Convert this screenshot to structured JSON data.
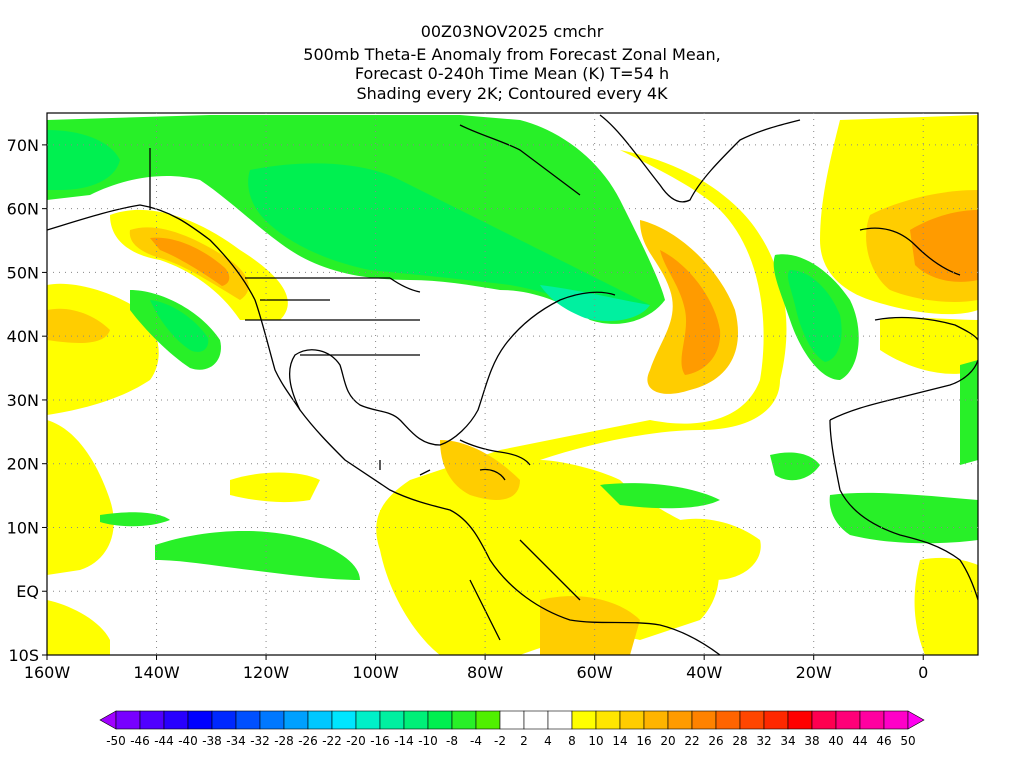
{
  "title": {
    "line1": "00Z03NOV2025 cmchr",
    "line2": "500mb Theta-E Anomaly from Forecast Zonal Mean,",
    "line3": "Forecast 0-240h Time Mean (K) T=54 h",
    "line4": "Shading every 2K; Contoured every 4K"
  },
  "map": {
    "lon_range": [
      -160,
      10
    ],
    "lat_range": [
      -10,
      75
    ],
    "lon_ticks": [
      "160W",
      "140W",
      "120W",
      "100W",
      "80W",
      "60W",
      "40W",
      "20W",
      "0"
    ],
    "lat_ticks": [
      "70N",
      "60N",
      "50N",
      "40N",
      "30N",
      "20N",
      "10N",
      "EQ",
      "10S"
    ],
    "gridlines": "dotted"
  },
  "colorbar": {
    "labels": [
      "-50",
      "-46",
      "-44",
      "-40",
      "-38",
      "-34",
      "-32",
      "-28",
      "-26",
      "-22",
      "-20",
      "-16",
      "-14",
      "-10",
      "-8",
      "-4",
      "-2",
      "2",
      "4",
      "8",
      "10",
      "14",
      "16",
      "20",
      "22",
      "26",
      "28",
      "32",
      "34",
      "38",
      "40",
      "44",
      "46",
      "50"
    ],
    "colors": [
      "#a000ff",
      "#7800ff",
      "#5000ff",
      "#2800ff",
      "#0000ff",
      "#0028ff",
      "#0050ff",
      "#0078ff",
      "#00a0ff",
      "#00c8ff",
      "#00e6ff",
      "#00f0c8",
      "#00f0a0",
      "#00f078",
      "#00f050",
      "#28f028",
      "#50f000",
      "#ffffff",
      "#ffffff",
      "#ffffff",
      "#ffff00",
      "#ffe600",
      "#ffcd00",
      "#ffb400",
      "#ff9b00",
      "#ff8200",
      "#ff6400",
      "#ff4600",
      "#ff2800",
      "#ff0000",
      "#ff0050",
      "#ff0078",
      "#ff00a0",
      "#ff00c8",
      "#ff00f0"
    ]
  }
}
